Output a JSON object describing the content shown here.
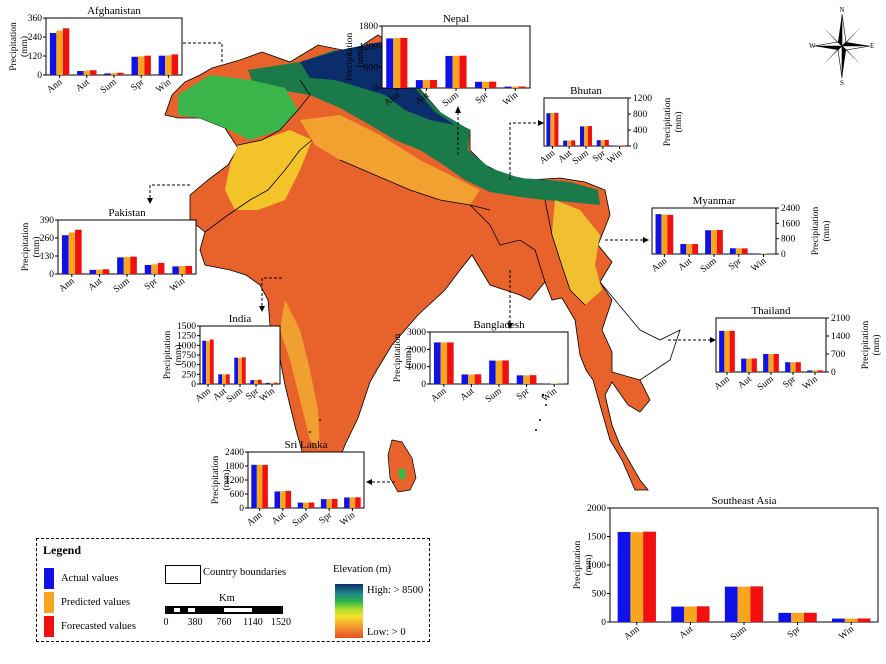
{
  "colors": {
    "actual": "#1010e8",
    "predicted": "#f7a51e",
    "forecasted": "#f01010",
    "ocean": "#ffffff",
    "land_low": "#e45a2a",
    "land_mid": "#f39a2c",
    "land_high": "#0b2d6b"
  },
  "compass": {
    "n": "N",
    "s": "S",
    "e": "E",
    "w": "W"
  },
  "legend": {
    "title": "Legend",
    "actual": "Actual values",
    "predicted": "Predicted values",
    "forecasted": "Forecasted values",
    "country_boundaries": "Country boundaries",
    "km": "Km",
    "scale_ticks": [
      "0",
      "380",
      "760",
      "1140",
      "1520"
    ],
    "elevation_title": "Elevation (m)",
    "elev_high": "High: > 8500",
    "elev_low": "Low: > 0"
  },
  "charts": [
    {
      "id": "afghanistan",
      "title": "Afghanistan",
      "ylabel": "Precipitation (mm)",
      "ylabel_side": "left",
      "yticks": [
        0,
        120,
        240,
        360
      ],
      "ymax": 360,
      "categories": [
        "Ann",
        "Aut",
        "Sum",
        "Spr",
        "Win"
      ],
      "values": [
        [
          265,
          280,
          295
        ],
        [
          25,
          28,
          30
        ],
        [
          10,
          12,
          14
        ],
        [
          115,
          118,
          122
        ],
        [
          122,
          124,
          130
        ]
      ]
    },
    {
      "id": "nepal",
      "title": "Nepal",
      "ylabel": "Precipitation (mm)",
      "ylabel_side": "left",
      "yticks": [
        0,
        600,
        1200,
        1800
      ],
      "ymax": 1800,
      "categories": [
        "Ann",
        "Aut",
        "Sum",
        "Spr",
        "Win"
      ],
      "values": [
        [
          1440,
          1450,
          1455
        ],
        [
          230,
          230,
          232
        ],
        [
          930,
          935,
          938
        ],
        [
          180,
          182,
          185
        ],
        [
          40,
          42,
          44
        ]
      ]
    },
    {
      "id": "bhutan",
      "title": "Bhutan",
      "ylabel": "Precipitation (mm)",
      "ylabel_side": "right",
      "yticks": [
        0,
        400,
        800,
        1200
      ],
      "ymax": 1200,
      "categories": [
        "Ann",
        "Aut",
        "Sum",
        "Spr",
        "Win"
      ],
      "values": [
        [
          820,
          825,
          828
        ],
        [
          135,
          138,
          140
        ],
        [
          490,
          495,
          498
        ],
        [
          145,
          147,
          150
        ],
        [
          12,
          14,
          15
        ]
      ]
    },
    {
      "id": "pakistan",
      "title": "Pakistan",
      "ylabel": "Precipitation (mm)",
      "ylabel_side": "left",
      "yticks": [
        0,
        130,
        260,
        390
      ],
      "ymax": 390,
      "categories": [
        "Ann",
        "Aut",
        "Sum",
        "Spr",
        "Win"
      ],
      "values": [
        [
          280,
          300,
          320
        ],
        [
          30,
          32,
          34
        ],
        [
          120,
          122,
          125
        ],
        [
          65,
          70,
          80
        ],
        [
          55,
          57,
          58
        ]
      ]
    },
    {
      "id": "myanmar",
      "title": "Myanmar",
      "ylabel": "Precipitation (mm)",
      "ylabel_side": "right",
      "yticks": [
        0,
        800,
        1600,
        2400
      ],
      "ymax": 2400,
      "categories": [
        "Ann",
        "Aut",
        "Sum",
        "Spr",
        "Win"
      ],
      "values": [
        [
          2080,
          2060,
          2040
        ],
        [
          520,
          520,
          520
        ],
        [
          1240,
          1245,
          1250
        ],
        [
          300,
          300,
          295
        ],
        [
          25,
          27,
          28
        ]
      ]
    },
    {
      "id": "india",
      "title": "India",
      "ylabel": "Precipitation (mm)",
      "ylabel_side": "left",
      "yticks": [
        0,
        250,
        500,
        750,
        1000,
        1250,
        1500
      ],
      "ymax": 1500,
      "categories": [
        "Ann",
        "Aut",
        "Sum",
        "Spr",
        "Win"
      ],
      "values": [
        [
          1120,
          1110,
          1150
        ],
        [
          250,
          250,
          250
        ],
        [
          680,
          680,
          690
        ],
        [
          100,
          105,
          110
        ],
        [
          30,
          32,
          34
        ]
      ]
    },
    {
      "id": "bangladesh",
      "title": "Bangladesh",
      "ylabel": "Precipitation (mm)",
      "ylabel_side": "left",
      "yticks": [
        0,
        1000,
        2000,
        3000
      ],
      "ymax": 3000,
      "categories": [
        "Ann",
        "Aut",
        "Sum",
        "Spr",
        "Win"
      ],
      "values": [
        [
          2400,
          2400,
          2400
        ],
        [
          550,
          550,
          560
        ],
        [
          1350,
          1350,
          1360
        ],
        [
          500,
          500,
          510
        ],
        [
          30,
          30,
          32
        ]
      ]
    },
    {
      "id": "thailand",
      "title": "Thailand",
      "ylabel": "Precipitation (mm)",
      "ylabel_side": "right",
      "yticks": [
        0,
        700,
        1400,
        2100
      ],
      "ymax": 2100,
      "categories": [
        "Ann",
        "Aut",
        "Sum",
        "Spr",
        "Win"
      ],
      "values": [
        [
          1600,
          1600,
          1600
        ],
        [
          520,
          520,
          525
        ],
        [
          700,
          700,
          700
        ],
        [
          380,
          380,
          380
        ],
        [
          60,
          60,
          65
        ]
      ]
    },
    {
      "id": "srilanka",
      "title": "Sri Lanka",
      "ylabel": "Precipitation (mm)",
      "ylabel_side": "left",
      "yticks": [
        0,
        600,
        1200,
        1800,
        2400
      ],
      "ymax": 2400,
      "categories": [
        "Ann",
        "Aut",
        "Sum",
        "Spr",
        "Win"
      ],
      "values": [
        [
          1850,
          1850,
          1850
        ],
        [
          710,
          720,
          730
        ],
        [
          230,
          230,
          235
        ],
        [
          380,
          385,
          390
        ],
        [
          450,
          455,
          460
        ]
      ]
    },
    {
      "id": "seasia",
      "title": "Southeast Asia",
      "ylabel": "Precipitation (mm)",
      "ylabel_side": "left",
      "yticks": [
        0,
        500,
        1000,
        1500,
        2000
      ],
      "ymax": 2000,
      "categories": [
        "Ann",
        "Aut",
        "Sum",
        "Spr",
        "Win"
      ],
      "values": [
        [
          1580,
          1575,
          1585
        ],
        [
          270,
          272,
          275
        ],
        [
          620,
          620,
          625
        ],
        [
          160,
          160,
          162
        ],
        [
          60,
          60,
          62
        ]
      ]
    }
  ]
}
